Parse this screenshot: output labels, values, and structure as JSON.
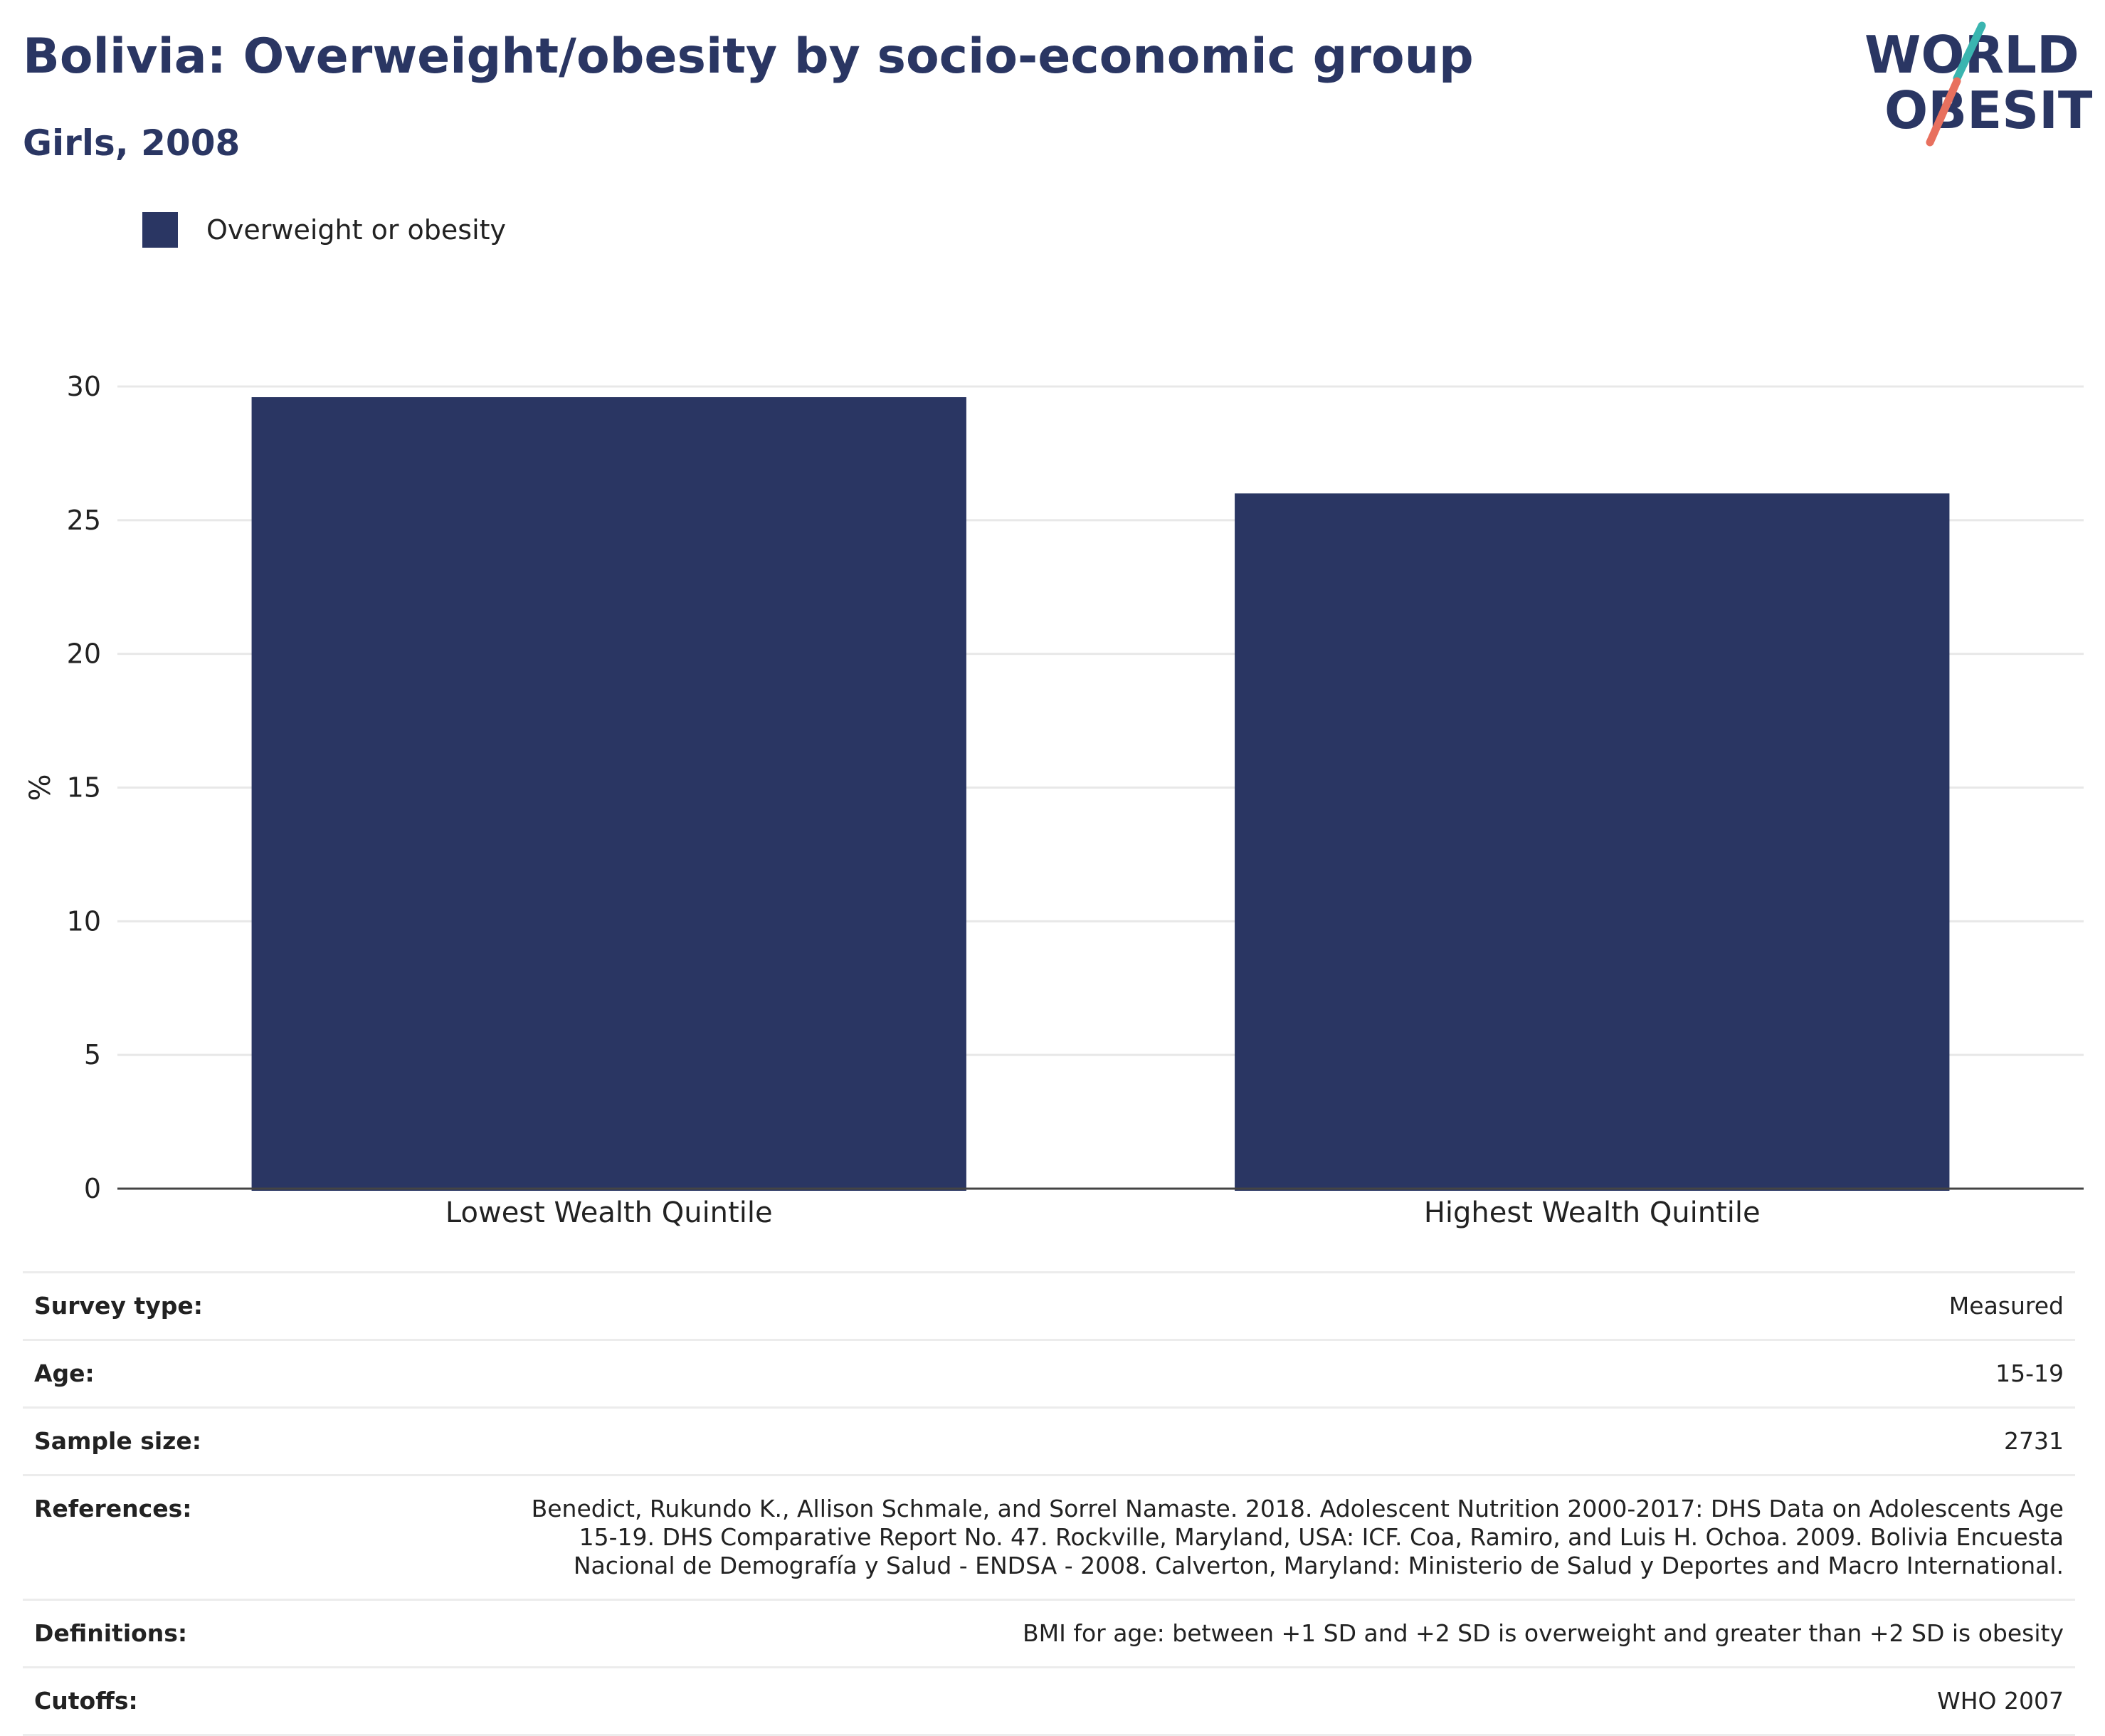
{
  "header": {
    "title": "Bolivia: Overweight/obesity by socio-economic group",
    "subtitle": "Girls, 2008"
  },
  "logo": {
    "line1": "WORLD",
    "line2": "OBESITY",
    "colors": {
      "navy": "#2a3663",
      "teal": "#3ab5b0",
      "coral": "#e8705e"
    }
  },
  "chart_data": {
    "type": "bar",
    "categories": [
      "Lowest Wealth Quintile",
      "Highest Wealth Quintile"
    ],
    "series": [
      {
        "name": "Overweight or obesity",
        "values": [
          29.6,
          26.0
        ],
        "color": "#2a3663"
      }
    ],
    "ylabel": "%",
    "xlabel": "",
    "ylim": [
      0,
      30
    ],
    "yticks": [
      0,
      5,
      10,
      15,
      20,
      25,
      30
    ],
    "grid": true,
    "legend": "top-left"
  },
  "info": {
    "rows": [
      {
        "label": "Survey type:",
        "value": "Measured"
      },
      {
        "label": "Age:",
        "value": "15-19"
      },
      {
        "label": "Sample size:",
        "value": "2731"
      },
      {
        "label": "References:",
        "value": "Benedict, Rukundo K., Allison Schmale, and Sorrel Namaste. 2018. Adolescent Nutrition 2000-2017: DHS Data on Adolescents Age 15-19. DHS Comparative Report No. 47. Rockville, Maryland, USA: ICF. Coa, Ramiro, and Luis H. Ochoa. 2009. Bolivia Encuesta Nacional de Demografía y Salud - ENDSA - 2008. Calverton, Maryland: Ministerio de Salud y Deportes and Macro International."
      },
      {
        "label": "Definitions:",
        "value": "BMI for age: between +1 SD and +2 SD is overweight and greater than +2 SD is obesity"
      },
      {
        "label": "Cutoffs:",
        "value": "WHO 2007"
      }
    ]
  }
}
